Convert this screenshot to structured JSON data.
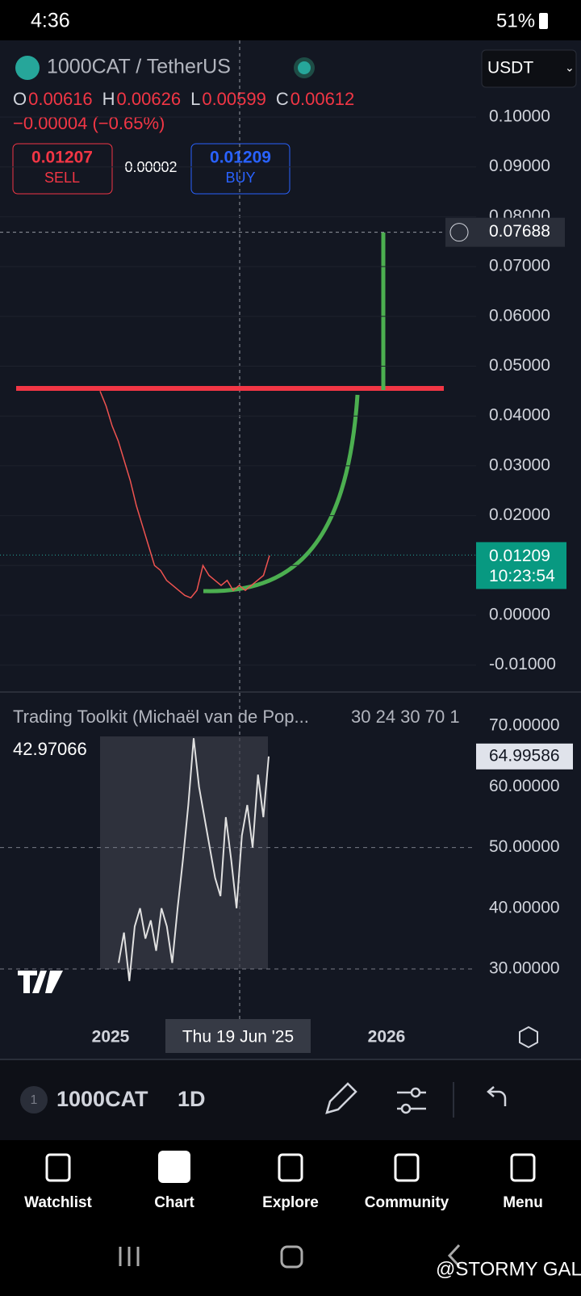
{
  "status_bar": {
    "time": "4:36",
    "battery": "51%"
  },
  "header": {
    "symbol": "1000CAT / TetherUS",
    "currency": "USDT",
    "ohlc": [
      {
        "key": "O",
        "value": "0.00616"
      },
      {
        "key": "H",
        "value": "0.00626"
      },
      {
        "key": "L",
        "value": "0.00599"
      },
      {
        "key": "C",
        "value": "0.00612"
      }
    ],
    "change": "−0.00004 (−0.65%)",
    "sell": {
      "price": "0.01207",
      "label": "SELL"
    },
    "spread": "0.00002",
    "buy": {
      "price": "0.01209",
      "label": "BUY"
    }
  },
  "price_chart": {
    "yticks": [
      {
        "value": 0.1,
        "label": "0.10000"
      },
      {
        "value": 0.09,
        "label": "0.09000"
      },
      {
        "value": 0.08,
        "label": "0.08000"
      },
      {
        "value": 0.07,
        "label": "0.07000"
      },
      {
        "value": 0.06,
        "label": "0.06000"
      },
      {
        "value": 0.05,
        "label": "0.05000"
      },
      {
        "value": 0.04,
        "label": "0.04000"
      },
      {
        "value": 0.03,
        "label": "0.03000"
      },
      {
        "value": 0.02,
        "label": "0.02000"
      },
      {
        "value": 0.01,
        "label": "0.01000"
      },
      {
        "value": 0,
        "label": "0.00000"
      },
      {
        "value": -0.01,
        "label": "-0.01000"
      }
    ],
    "closes": [
      0.045,
      0.042,
      0.038,
      0.035,
      0.031,
      0.027,
      0.022,
      0.018,
      0.014,
      0.01,
      0.009,
      0.007,
      0.006,
      0.005,
      0.004,
      0.0035,
      0.005,
      0.01,
      0.008,
      0.007,
      0.006,
      0.007,
      0.005,
      0.006,
      0.005,
      0.006,
      0.007,
      0.008,
      0.012
    ],
    "crosshair_price": {
      "value": 0.07688,
      "label": "0.07688"
    },
    "last_price": {
      "value": 0.01209,
      "label": "0.01209"
    },
    "countdown": "10:23:54",
    "x_labels": [
      "2025",
      "Thu 19 Jun '25",
      "2026"
    ]
  },
  "indicator": {
    "title": "Trading Toolkit (Michaël van de Pop...",
    "params": "30 24 30 70 1",
    "left_value": "42.97066",
    "last_value": {
      "value": 64.99586,
      "label": "64.99586"
    },
    "yticks": [
      {
        "value": 70,
        "label": "70.00000"
      },
      {
        "value": 60,
        "label": "60.00000"
      },
      {
        "value": 50,
        "label": "50.00000"
      },
      {
        "value": 40,
        "label": "40.00000"
      },
      {
        "value": 30,
        "label": "30.00000"
      }
    ],
    "values": [
      31,
      36,
      28,
      37,
      40,
      35,
      38,
      33,
      40,
      37,
      31,
      40,
      48,
      57,
      68,
      60,
      55,
      50,
      45,
      42,
      55,
      48,
      40,
      52,
      57,
      50,
      62,
      55,
      65
    ]
  },
  "toolbar": {
    "badge": "1",
    "symbol": "1000CAT",
    "interval": "1D"
  },
  "nav": [
    "Watchlist",
    "Chart",
    "Explore",
    "Community",
    "Menu"
  ],
  "watermark": "@STORMY GAL"
}
